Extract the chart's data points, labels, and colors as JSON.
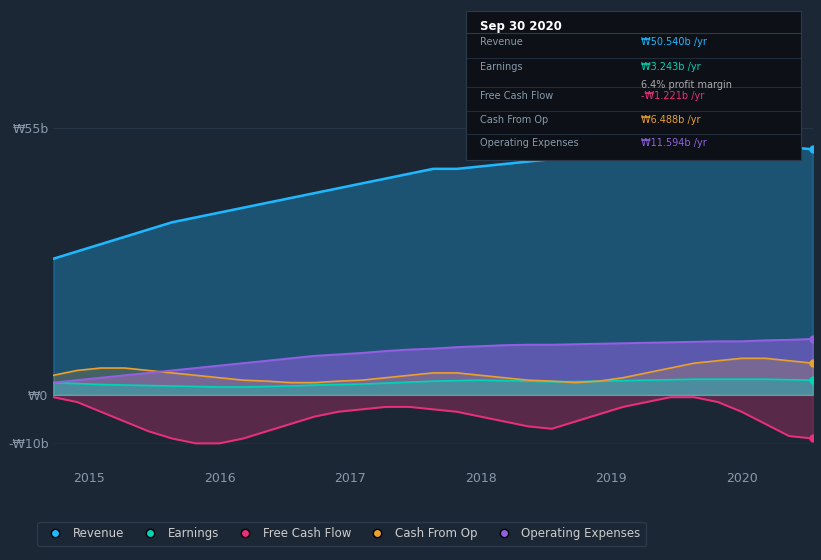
{
  "background_color": "#1c2736",
  "plot_bg_color": "#1c2736",
  "ylim": [
    -15,
    68
  ],
  "yticks_vals": [
    -10,
    0,
    55
  ],
  "ytick_labels": [
    "-₩10b",
    "₩0",
    "₩55b"
  ],
  "xtick_labels": [
    "2015",
    "2016",
    "2017",
    "2018",
    "2019",
    "2020"
  ],
  "legend": [
    {
      "label": "Revenue",
      "color": "#1eb8ff"
    },
    {
      "label": "Earnings",
      "color": "#00d4b4"
    },
    {
      "label": "Free Cash Flow",
      "color": "#e8307a"
    },
    {
      "label": "Cash From Op",
      "color": "#e8a030"
    },
    {
      "label": "Operating Expenses",
      "color": "#9060e0"
    }
  ],
  "col_revenue": "#1eb8ff",
  "col_earnings": "#00d4b4",
  "col_fcf": "#e8307a",
  "col_cashop": "#e8a030",
  "col_opex": "#9060e0",
  "revenue": [
    28,
    29.5,
    31,
    32.5,
    34,
    35.5,
    36.5,
    37.5,
    38.5,
    39.5,
    40.5,
    41.5,
    42.5,
    43.5,
    44.5,
    45.5,
    46.5,
    46.5,
    47,
    47.5,
    48,
    48.5,
    49,
    50,
    50.5,
    51.5,
    52.5,
    54,
    55,
    54.5,
    52,
    51,
    50.5
  ],
  "earnings": [
    2.5,
    2.3,
    2.1,
    2.0,
    1.9,
    1.8,
    1.7,
    1.6,
    1.6,
    1.7,
    1.8,
    2.0,
    2.1,
    2.2,
    2.4,
    2.6,
    2.8,
    2.9,
    3.0,
    2.9,
    2.8,
    2.7,
    2.7,
    2.8,
    2.9,
    3.0,
    3.1,
    3.2,
    3.2,
    3.2,
    3.2,
    3.1,
    3.0
  ],
  "free_cash_flow": [
    -0.5,
    -1.5,
    -3.5,
    -5.5,
    -7.5,
    -9.0,
    -10.0,
    -10.0,
    -9.0,
    -7.5,
    -6.0,
    -4.5,
    -3.5,
    -3.0,
    -2.5,
    -2.5,
    -3.0,
    -3.5,
    -4.5,
    -5.5,
    -6.5,
    -7.0,
    -5.5,
    -4.0,
    -2.5,
    -1.5,
    -0.5,
    -0.5,
    -1.5,
    -3.5,
    -6.0,
    -8.5,
    -9.0
  ],
  "cash_from_op": [
    4.0,
    5.0,
    5.5,
    5.5,
    5.0,
    4.5,
    4.0,
    3.5,
    3.0,
    2.8,
    2.5,
    2.5,
    2.8,
    3.0,
    3.5,
    4.0,
    4.5,
    4.5,
    4.0,
    3.5,
    3.0,
    2.8,
    2.5,
    2.8,
    3.5,
    4.5,
    5.5,
    6.5,
    7.0,
    7.5,
    7.5,
    7.0,
    6.5
  ],
  "operating_expenses": [
    2.5,
    3.0,
    3.5,
    4.0,
    4.5,
    5.0,
    5.5,
    6.0,
    6.5,
    7.0,
    7.5,
    8.0,
    8.3,
    8.6,
    9.0,
    9.3,
    9.5,
    9.8,
    10.0,
    10.2,
    10.3,
    10.3,
    10.4,
    10.5,
    10.6,
    10.7,
    10.8,
    10.9,
    11.0,
    11.0,
    11.2,
    11.3,
    11.5
  ],
  "n_points": 33,
  "tooltip_bg": "#0d1117",
  "tooltip_border": "#2a3a4a",
  "tooltip_title": "Sep 30 2020",
  "grid_color": "#2a3a4a",
  "zero_line_color": "#8899aa",
  "tick_color": "#8899aa"
}
